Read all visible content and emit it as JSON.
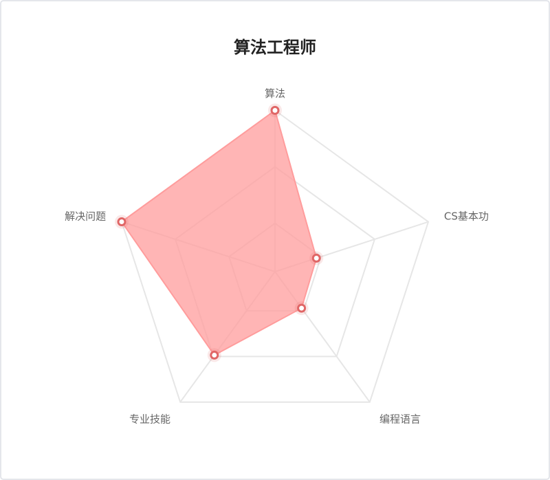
{
  "chart_data": {
    "type": "radar",
    "title": "算法工程师",
    "categories": [
      "算法",
      "CS基本功",
      "编程语言",
      "专业技能",
      "解决问题"
    ],
    "values": [
      100,
      27,
      28,
      64,
      100
    ],
    "rlim": [
      0,
      100
    ],
    "rticks": [
      30,
      65,
      100
    ],
    "color": "#ff9c9c",
    "marker_color": "#e06666"
  }
}
